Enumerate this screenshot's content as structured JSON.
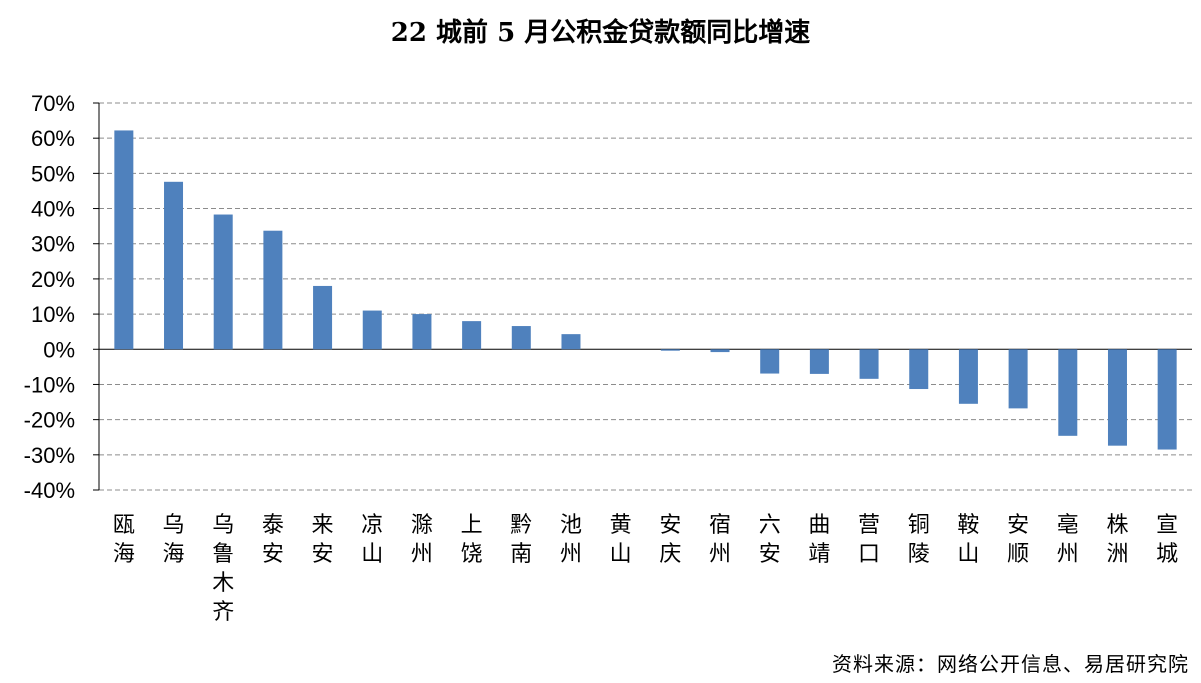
{
  "source": "资料来源：网络公开信息、易居研究院",
  "chart_data": {
    "type": "bar",
    "title": "22 城前 5 月公积金贷款额同比增速",
    "xlabel": "",
    "ylabel": "",
    "ylim": [
      -40,
      70
    ],
    "ytick_step": 10,
    "ytick_suffix": "%",
    "grid": true,
    "bar_color": "#4f81bd",
    "categories": [
      "瓯海",
      "乌海",
      "乌鲁木齐",
      "泰安",
      "来安",
      "凉山",
      "滁州",
      "上饶",
      "黔南",
      "池州",
      "黄山",
      "安庆",
      "宿州",
      "六安",
      "曲靖",
      "营口",
      "铜陵",
      "鞍山",
      "安顺",
      "亳州",
      "株洲",
      "宣城"
    ],
    "values": [
      62.2,
      47.6,
      38.3,
      33.7,
      18.0,
      11.0,
      10.0,
      8.0,
      6.6,
      4.3,
      0.0,
      -0.4,
      -0.8,
      -6.9,
      -7.0,
      -8.4,
      -11.3,
      -15.5,
      -16.8,
      -24.6,
      -27.4,
      -28.5
    ]
  }
}
